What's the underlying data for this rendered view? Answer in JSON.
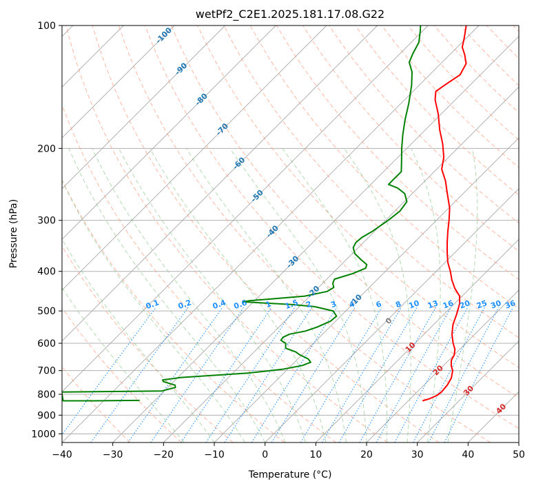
{
  "chart_data": {
    "type": "line",
    "subtype": "skew-t log-p",
    "title": "wetPf2_C2E1.2025.181.17.08.G22",
    "xlabel": "Temperature (°C)",
    "ylabel": "Pressure (hPa)",
    "xlim": [
      -40,
      50
    ],
    "ylim": [
      1050,
      100
    ],
    "y_scale": "log",
    "x_ticks": [
      "−40",
      "−30",
      "−20",
      "−10",
      "0",
      "10",
      "20",
      "30",
      "40",
      "50"
    ],
    "y_ticks": [
      "100",
      "200",
      "300",
      "400",
      "500",
      "600",
      "700",
      "800",
      "900",
      "1000"
    ],
    "grid": true,
    "colors": {
      "temperature": "#ff0000",
      "dewpoint": "#008000",
      "dry_adiabat": "#ff9e80",
      "moist_adiabat": "#7fc27f",
      "mixing_ratio": "#1f8fff",
      "isotherm": "#888888",
      "label_blue": "#1f77b4",
      "label_red": "#d62728",
      "label_mixing": "#1e90ff"
    },
    "isotherm_labels_negative": [
      "-100",
      "-90",
      "-80",
      "-70",
      "-60",
      "-50",
      "-40",
      "-30",
      "-20",
      "-10"
    ],
    "isotherm_label_zero": "0",
    "isotherm_labels_positive": [
      "10",
      "20",
      "30",
      "40"
    ],
    "mixing_ratio_labels": [
      "0.1",
      "0.2",
      "0.4",
      "0.6",
      "1",
      "1.5",
      "2",
      "3",
      "4",
      "6",
      "8",
      "10",
      "13",
      "16",
      "20",
      "25",
      "30",
      "36"
    ],
    "series": [
      {
        "key": "temperature",
        "points": [
          {
            "p": 830,
            "t": 22.8
          },
          {
            "p": 820,
            "t": 23.8
          },
          {
            "p": 805,
            "t": 24.6
          },
          {
            "p": 790,
            "t": 24.8
          },
          {
            "p": 760,
            "t": 24.6
          },
          {
            "p": 730,
            "t": 24.0
          },
          {
            "p": 700,
            "t": 22.8
          },
          {
            "p": 680,
            "t": 21.5
          },
          {
            "p": 660,
            "t": 20.5
          },
          {
            "p": 640,
            "t": 20.0
          },
          {
            "p": 620,
            "t": 19.0
          },
          {
            "p": 600,
            "t": 17.5
          },
          {
            "p": 570,
            "t": 15.5
          },
          {
            "p": 540,
            "t": 13.8
          },
          {
            "p": 510,
            "t": 12.5
          },
          {
            "p": 480,
            "t": 11.0
          },
          {
            "p": 460,
            "t": 9.5
          },
          {
            "p": 440,
            "t": 7.0
          },
          {
            "p": 420,
            "t": 4.8
          },
          {
            "p": 400,
            "t": 2.8
          },
          {
            "p": 380,
            "t": 0.5
          },
          {
            "p": 360,
            "t": -1.5
          },
          {
            "p": 340,
            "t": -3.5
          },
          {
            "p": 320,
            "t": -5.5
          },
          {
            "p": 300,
            "t": -7.5
          },
          {
            "p": 280,
            "t": -9.8
          },
          {
            "p": 260,
            "t": -12.8
          },
          {
            "p": 240,
            "t": -16.0
          },
          {
            "p": 225,
            "t": -19.0
          },
          {
            "p": 210,
            "t": -21.0
          },
          {
            "p": 195,
            "t": -23.8
          },
          {
            "p": 180,
            "t": -27.2
          },
          {
            "p": 165,
            "t": -30.5
          },
          {
            "p": 152,
            "t": -34.0
          },
          {
            "p": 145,
            "t": -35.5
          },
          {
            "p": 140,
            "t": -35.0
          },
          {
            "p": 132,
            "t": -34.0
          },
          {
            "p": 124,
            "t": -35.0
          },
          {
            "p": 118,
            "t": -37.0
          },
          {
            "p": 113,
            "t": -39.0
          },
          {
            "p": 107,
            "t": -40.5
          },
          {
            "p": 100,
            "t": -42.5
          }
        ]
      },
      {
        "key": "dewpoint",
        "points": [
          {
            "p": 828,
            "t": -33.0
          },
          {
            "p": 830,
            "t": -42.0
          },
          {
            "p": 830,
            "t": -48.0
          },
          {
            "p": 790,
            "t": -50.0
          },
          {
            "p": 785,
            "t": -30.5
          },
          {
            "p": 770,
            "t": -28.5
          },
          {
            "p": 760,
            "t": -29.0
          },
          {
            "p": 745,
            "t": -32.0
          },
          {
            "p": 738,
            "t": -32.5
          },
          {
            "p": 728,
            "t": -29.5
          },
          {
            "p": 720,
            "t": -24.0
          },
          {
            "p": 710,
            "t": -17.0
          },
          {
            "p": 695,
            "t": -11.0
          },
          {
            "p": 680,
            "t": -7.8
          },
          {
            "p": 668,
            "t": -6.8
          },
          {
            "p": 655,
            "t": -8.0
          },
          {
            "p": 640,
            "t": -10.5
          },
          {
            "p": 630,
            "t": -11.8
          },
          {
            "p": 617,
            "t": -14.5
          },
          {
            "p": 600,
            "t": -15.5
          },
          {
            "p": 590,
            "t": -17.0
          },
          {
            "p": 580,
            "t": -17.2
          },
          {
            "p": 570,
            "t": -16.5
          },
          {
            "p": 560,
            "t": -14.0
          },
          {
            "p": 548,
            "t": -12.5
          },
          {
            "p": 530,
            "t": -11.0
          },
          {
            "p": 515,
            "t": -10.8
          },
          {
            "p": 500,
            "t": -12.5
          },
          {
            "p": 488,
            "t": -17.0
          },
          {
            "p": 482,
            "t": -22.0
          },
          {
            "p": 478,
            "t": -28.0
          },
          {
            "p": 475,
            "t": -32.0
          },
          {
            "p": 472,
            "t": -31.0
          },
          {
            "p": 466,
            "t": -26.0
          },
          {
            "p": 460,
            "t": -21.0
          },
          {
            "p": 448,
            "t": -17.5
          },
          {
            "p": 438,
            "t": -17.0
          },
          {
            "p": 428,
            "t": -18.0
          },
          {
            "p": 418,
            "t": -18.5
          },
          {
            "p": 405,
            "t": -16.0
          },
          {
            "p": 393,
            "t": -14.5
          },
          {
            "p": 385,
            "t": -15.0
          },
          {
            "p": 375,
            "t": -17.0
          },
          {
            "p": 362,
            "t": -19.5
          },
          {
            "p": 350,
            "t": -21.0
          },
          {
            "p": 340,
            "t": -21.5
          },
          {
            "p": 330,
            "t": -21.3
          },
          {
            "p": 320,
            "t": -20.5
          },
          {
            "p": 300,
            "t": -19.5
          },
          {
            "p": 285,
            "t": -19.0
          },
          {
            "p": 270,
            "t": -19.5
          },
          {
            "p": 258,
            "t": -21.5
          },
          {
            "p": 250,
            "t": -24.0
          },
          {
            "p": 245,
            "t": -26.5
          },
          {
            "p": 238,
            "t": -26.5
          },
          {
            "p": 228,
            "t": -26.5
          },
          {
            "p": 215,
            "t": -28.5
          },
          {
            "p": 200,
            "t": -31.0
          },
          {
            "p": 185,
            "t": -33.5
          },
          {
            "p": 170,
            "t": -36.0
          },
          {
            "p": 155,
            "t": -38.5
          },
          {
            "p": 140,
            "t": -41.5
          },
          {
            "p": 130,
            "t": -44.0
          },
          {
            "p": 123,
            "t": -46.5
          },
          {
            "p": 117,
            "t": -47.5
          },
          {
            "p": 110,
            "t": -48.5
          },
          {
            "p": 103,
            "t": -50.5
          },
          {
            "p": 100,
            "t": -51.5
          }
        ]
      }
    ]
  }
}
